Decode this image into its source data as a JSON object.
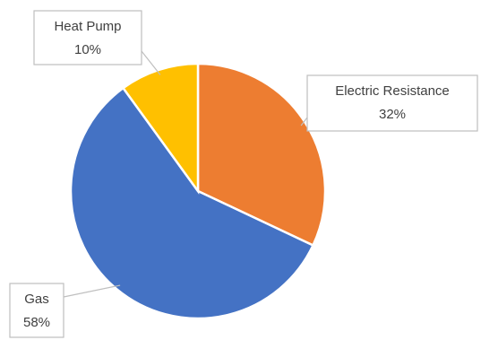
{
  "chart_data": {
    "type": "pie",
    "slices": [
      {
        "label": "Electric Resistance",
        "value": 32,
        "value_label": "32%",
        "color": "#ED7D31"
      },
      {
        "label": "Gas",
        "value": 58,
        "value_label": "58%",
        "color": "#4472C4"
      },
      {
        "label": "Heat Pump",
        "value": 10,
        "value_label": "10%",
        "color": "#FFC000"
      }
    ],
    "start": "12 o'clock",
    "direction": "clockwise",
    "data_labels": "callouts",
    "legend": "none"
  }
}
